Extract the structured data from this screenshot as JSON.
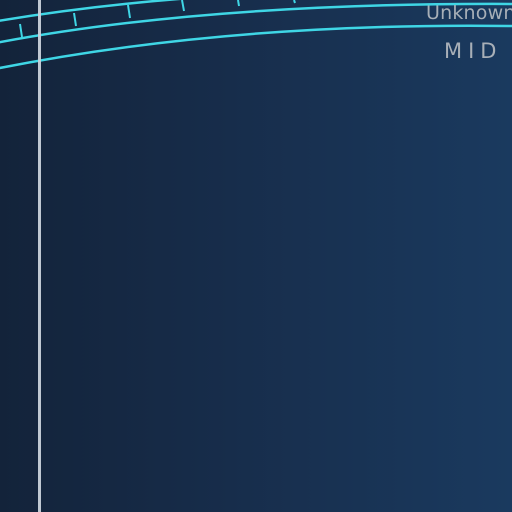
{
  "app": {
    "title": "Unknown",
    "band_label": "MID"
  },
  "colors": {
    "background_left": "#13233a",
    "background_right": "#1a3a5f",
    "accent_cyan": "#3fd6e5",
    "divider": "#c9d1da",
    "text_muted": "#a7afb7"
  }
}
